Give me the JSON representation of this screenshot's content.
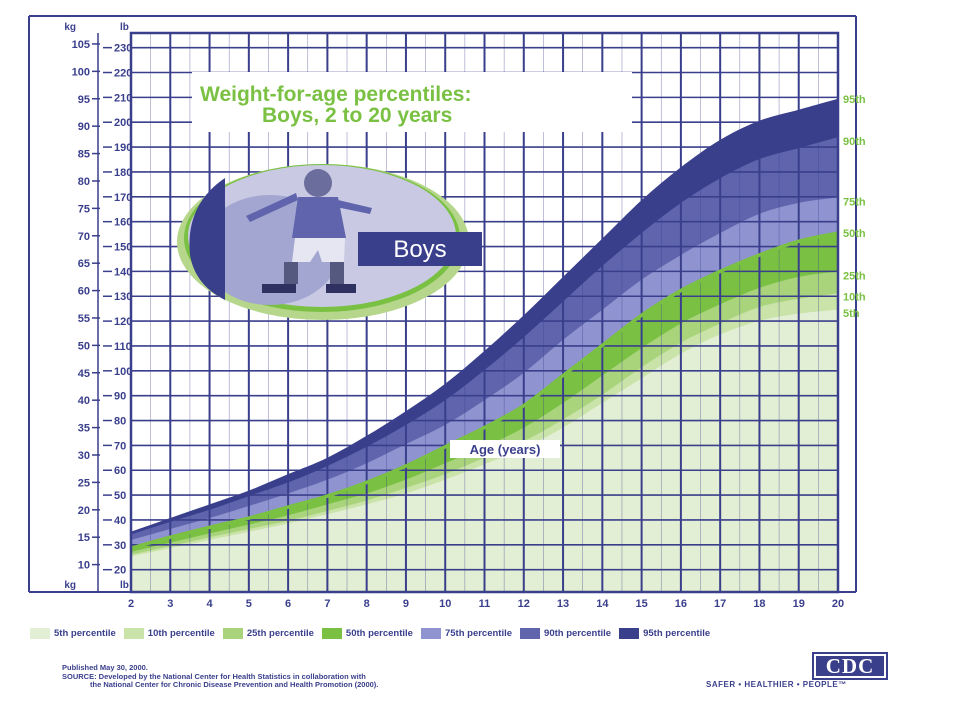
{
  "colors": {
    "navy": "#3a3f8c",
    "green_text": "#7ac143",
    "p5": "#e3efd4",
    "p10": "#c9e3a8",
    "p25": "#a9d47c",
    "p50": "#7ac143",
    "p75": "#8f93cf",
    "p90": "#5f64ad",
    "p95": "#3a3f8c"
  },
  "chart_data": {
    "type": "area",
    "title": "Weight-for-age percentiles:",
    "subtitle": "Boys, 2 to 20 years",
    "xlabel": "Age (years)",
    "ylabel_left_unit": "kg",
    "ylabel_right_unit": "lb",
    "x": [
      2,
      3,
      4,
      5,
      6,
      7,
      8,
      9,
      10,
      11,
      12,
      13,
      14,
      15,
      16,
      17,
      18,
      19,
      20
    ],
    "x_ticks": [
      "2",
      "3",
      "4",
      "5",
      "6",
      "7",
      "8",
      "9",
      "10",
      "11",
      "12",
      "13",
      "14",
      "15",
      "16",
      "17",
      "18",
      "19",
      "20"
    ],
    "kg_ticks": [
      "10",
      "15",
      "20",
      "25",
      "30",
      "35",
      "40",
      "45",
      "50",
      "55",
      "60",
      "65",
      "70",
      "75",
      "80",
      "85",
      "90",
      "95",
      "100",
      "105"
    ],
    "lb_ticks": [
      "20",
      "30",
      "40",
      "50",
      "60",
      "70",
      "80",
      "90",
      "100",
      "110",
      "120",
      "130",
      "140",
      "150",
      "160",
      "170",
      "180",
      "190",
      "200",
      "210",
      "220",
      "230"
    ],
    "ylim_kg": [
      5,
      107
    ],
    "series": [
      {
        "name": "95th",
        "legend": "95th percentile",
        "values": [
          16.0,
          18.5,
          21.0,
          23.5,
          26.5,
          29.5,
          33.5,
          38.0,
          43.0,
          49.0,
          55.5,
          62.5,
          69.5,
          76.5,
          82.5,
          87.5,
          91.0,
          93.0,
          95.0
        ]
      },
      {
        "name": "90th",
        "legend": "90th percentile",
        "values": [
          15.5,
          17.8,
          20.0,
          22.5,
          25.0,
          28.0,
          31.5,
          35.5,
          40.0,
          45.5,
          51.5,
          58.0,
          64.5,
          70.5,
          76.0,
          80.5,
          84.0,
          86.0,
          88.0
        ]
      },
      {
        "name": "75th",
        "legend": "75th percentile",
        "values": [
          14.5,
          16.5,
          18.5,
          20.7,
          23.0,
          25.5,
          28.5,
          32.0,
          35.5,
          40.0,
          45.0,
          51.0,
          56.5,
          62.0,
          66.5,
          70.5,
          74.0,
          76.0,
          77.0
        ]
      },
      {
        "name": "50th",
        "legend": "50th percentile",
        "values": [
          13.0,
          15.0,
          16.8,
          18.5,
          20.5,
          22.5,
          25.0,
          28.0,
          31.5,
          35.0,
          39.0,
          44.5,
          50.0,
          55.5,
          60.0,
          63.5,
          66.5,
          69.0,
          70.5
        ]
      },
      {
        "name": "25th",
        "legend": "25th percentile",
        "values": [
          12.3,
          14.0,
          15.7,
          17.3,
          19.0,
          21.0,
          23.0,
          25.5,
          28.5,
          31.5,
          35.0,
          39.5,
          44.5,
          49.5,
          54.0,
          57.5,
          60.5,
          62.5,
          63.5
        ]
      },
      {
        "name": "10th",
        "legend": "10th percentile",
        "values": [
          11.8,
          13.4,
          15.0,
          16.5,
          18.0,
          19.8,
          21.7,
          24.0,
          26.5,
          29.5,
          32.5,
          36.5,
          41.0,
          46.0,
          50.5,
          54.0,
          57.0,
          58.5,
          59.5
        ]
      },
      {
        "name": "5th",
        "legend": "5th percentile",
        "values": [
          11.5,
          13.0,
          14.5,
          16.0,
          17.5,
          19.2,
          21.0,
          23.0,
          25.5,
          28.3,
          31.3,
          35.0,
          39.5,
          44.0,
          48.5,
          52.0,
          54.5,
          55.8,
          56.5
        ]
      }
    ],
    "inset_label": "Boys",
    "legend_placement": "bottom",
    "grid": true
  },
  "footer": {
    "published": "Published May 30, 2000.",
    "source_1": "SOURCE: Developed by the National Center for Health Statistics in collaboration with",
    "source_2": "the National Center for Chronic Disease Prevention and Health Promotion (2000).",
    "logo": "CDC",
    "tagline": "SAFER • HEALTHIER • PEOPLE™"
  }
}
